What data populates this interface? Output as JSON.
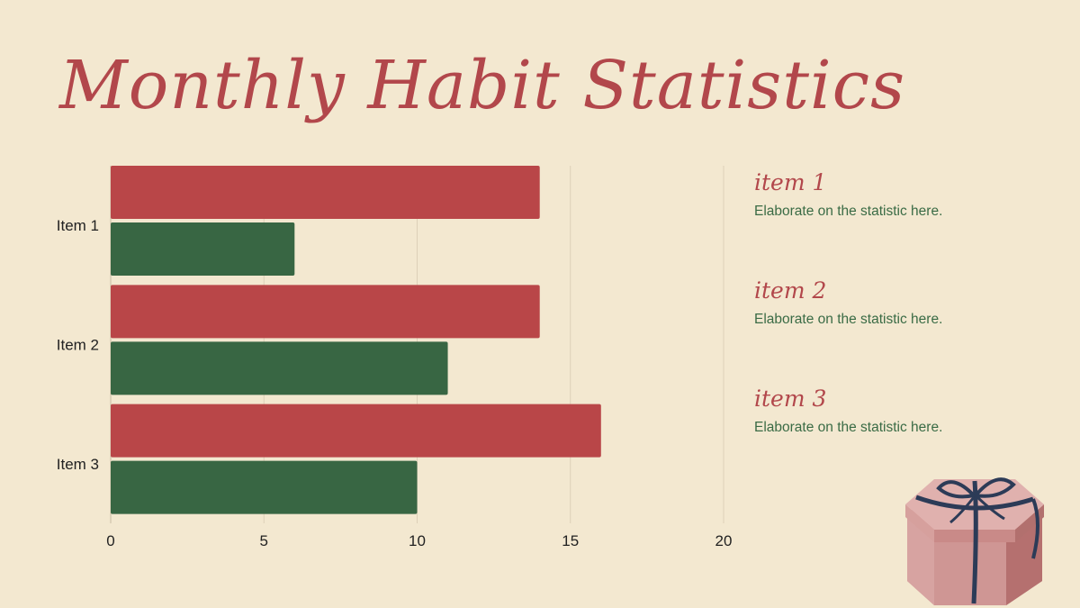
{
  "title": "Monthly Habit Statistics",
  "chart_data": {
    "type": "bar",
    "orientation": "horizontal",
    "categories": [
      "Item 1",
      "Item 2",
      "Item 3"
    ],
    "series": [
      {
        "values": [
          14,
          14,
          16
        ],
        "color": "#b94648"
      },
      {
        "values": [
          6,
          11,
          10
        ],
        "color": "#386643"
      }
    ],
    "xlim": [
      0,
      20
    ],
    "xticks": [
      0,
      5,
      10,
      15,
      20
    ],
    "grid": true
  },
  "notes": [
    {
      "title": "item 1",
      "desc": "Elaborate on the statistic here."
    },
    {
      "title": "item 2",
      "desc": "Elaborate on the statistic here."
    },
    {
      "title": "item 3",
      "desc": "Elaborate on the statistic here."
    }
  ],
  "decoration": {
    "icon": "gift-box-icon"
  }
}
